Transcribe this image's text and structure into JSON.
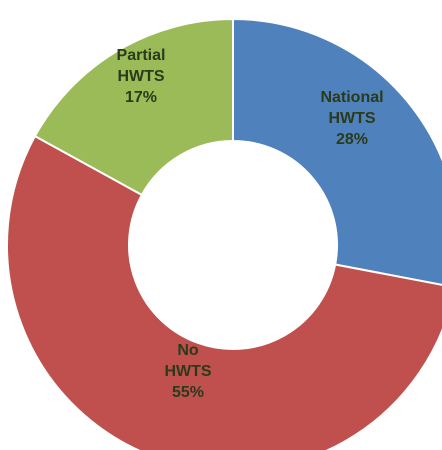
{
  "chart_data": {
    "type": "pie",
    "variant": "donut",
    "title": "",
    "legend": "none",
    "slices": [
      {
        "label": [
          "National",
          "HWTS",
          "28%"
        ],
        "value": 28,
        "color": "#4f81bd",
        "label_color": "#17263a"
      },
      {
        "label": [
          "No",
          "HWTS",
          "55%"
        ],
        "value": 55,
        "color": "#c0504d",
        "label_color": "#3a1412"
      },
      {
        "label": [
          "Partial",
          "HWTS",
          "17%"
        ],
        "value": 17,
        "color": "#9bbb59",
        "label_color": "#2a3b10"
      }
    ]
  }
}
